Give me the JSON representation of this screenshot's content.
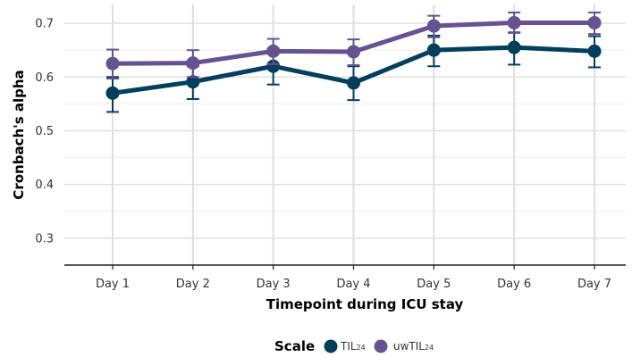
{
  "chart_data": {
    "type": "line",
    "title": "",
    "xlabel": "Timepoint during ICU stay",
    "ylabel": "Cronbach's alpha",
    "categories": [
      "Day 1",
      "Day 2",
      "Day 3",
      "Day 4",
      "Day 5",
      "Day 6",
      "Day 7"
    ],
    "ylim": [
      0.25,
      0.735
    ],
    "yticks": [
      0.3,
      0.4,
      0.5,
      0.6,
      0.7
    ],
    "ytick_labels": [
      "0.3",
      "0.4",
      "0.5",
      "0.6",
      "0.7"
    ],
    "grid": true,
    "legend": {
      "title": "Scale",
      "position": "bottom",
      "entries": [
        {
          "base": "TIL",
          "sub": "24"
        },
        {
          "base": "uwTIL",
          "sub": "24"
        }
      ]
    },
    "series": [
      {
        "color": "#003f5c",
        "values": [
          0.57,
          0.591,
          0.62,
          0.589,
          0.65,
          0.655,
          0.648
        ],
        "lower": [
          0.535,
          0.559,
          0.586,
          0.557,
          0.62,
          0.623,
          0.618
        ],
        "upper": [
          0.6,
          0.62,
          0.653,
          0.62,
          0.677,
          0.683,
          0.676
        ]
      },
      {
        "color": "#665191",
        "values": [
          0.625,
          0.626,
          0.648,
          0.647,
          0.695,
          0.701,
          0.701
        ],
        "lower": [
          0.597,
          0.6,
          0.624,
          0.622,
          0.674,
          0.682,
          0.68
        ],
        "upper": [
          0.651,
          0.65,
          0.671,
          0.67,
          0.714,
          0.72,
          0.72
        ]
      }
    ]
  }
}
